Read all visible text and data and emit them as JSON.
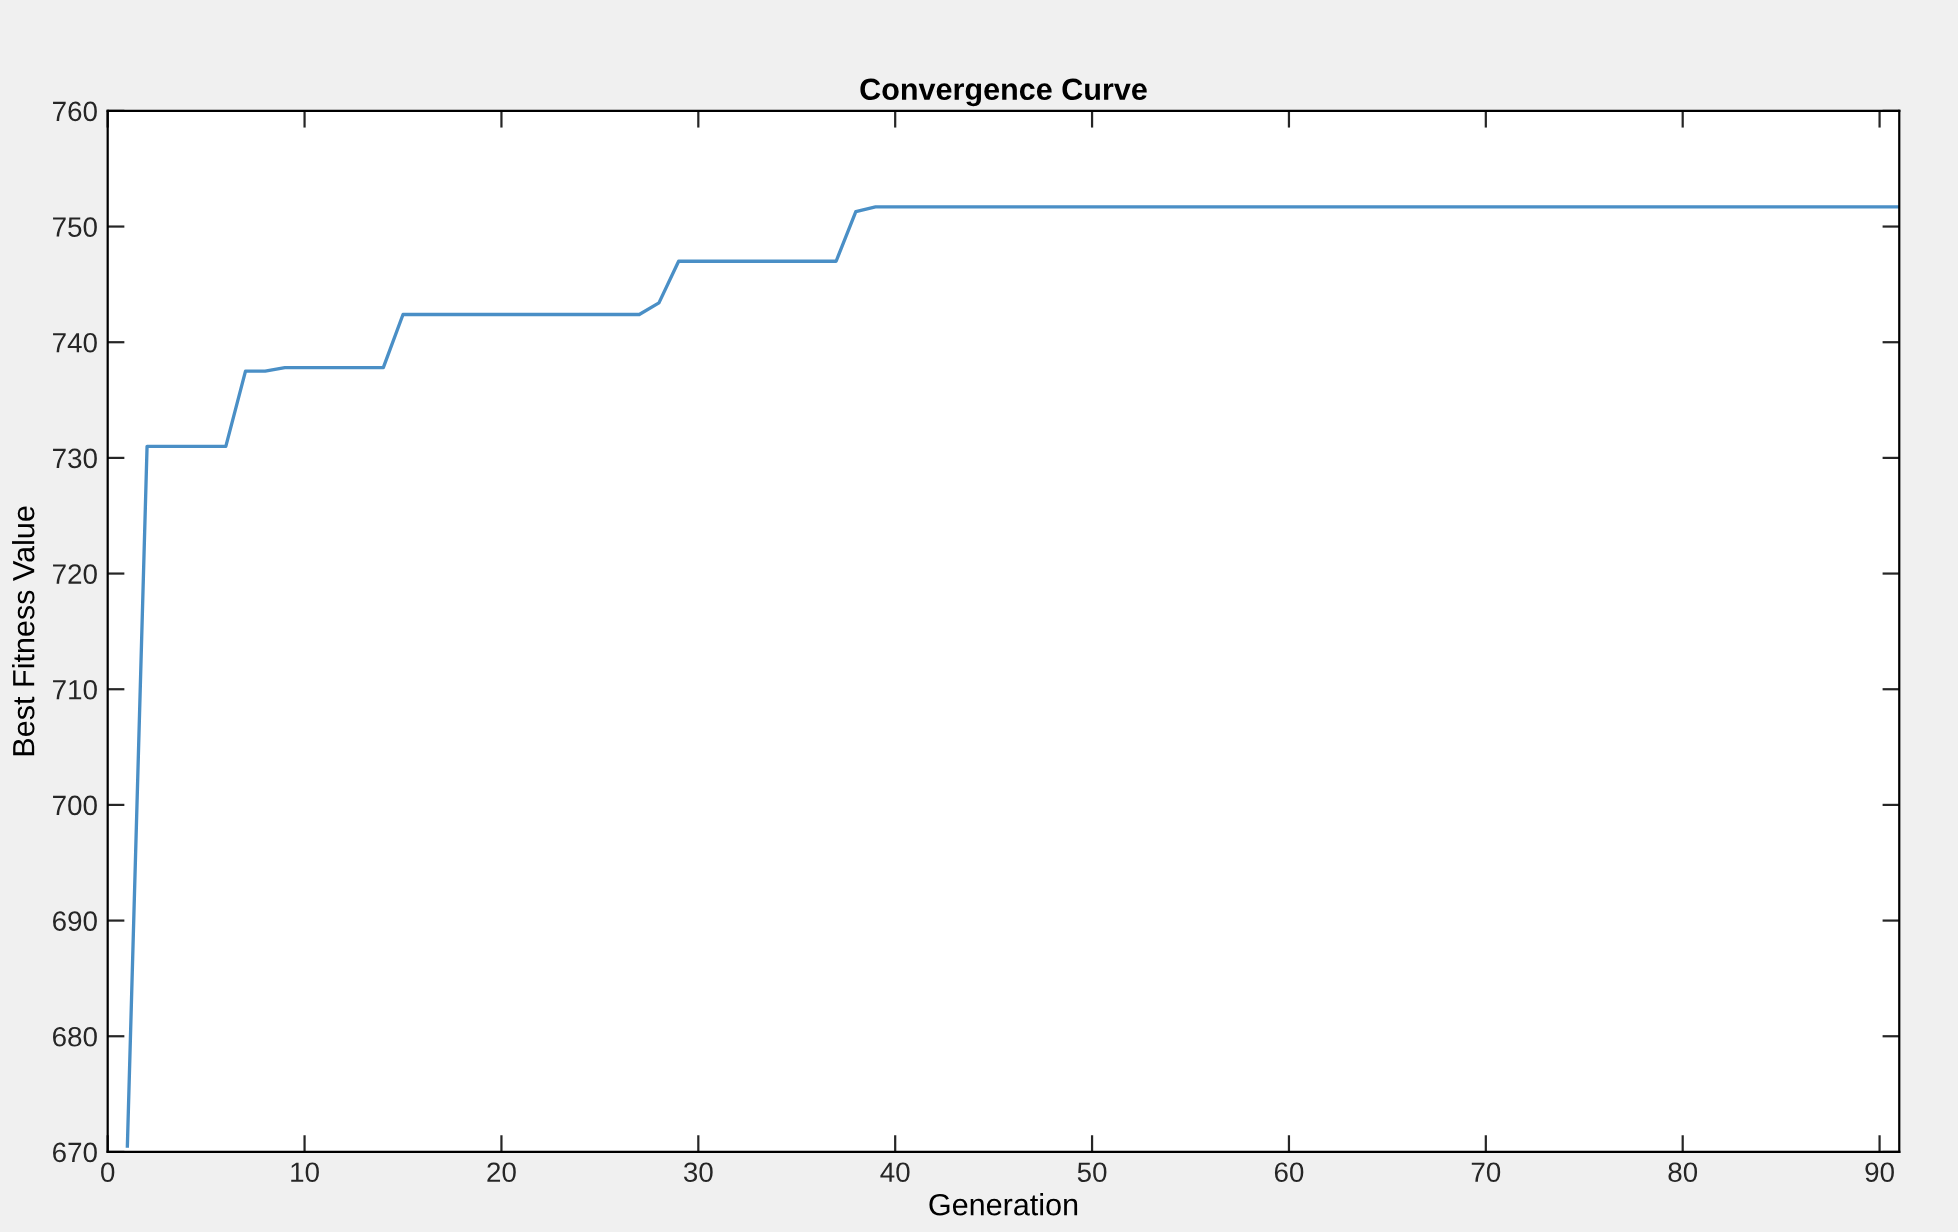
{
  "chart_data": {
    "type": "line",
    "title": "Convergence Curve",
    "xlabel": "Generation",
    "ylabel": "Best Fitness Value",
    "x": [
      1,
      2,
      6,
      7,
      8,
      9,
      14,
      15,
      27,
      28,
      29,
      37,
      38,
      39,
      91
    ],
    "series": [
      {
        "color": "#4a8fc6",
        "values": [
          670.5,
          731,
          731,
          737.5,
          737.5,
          737.8,
          737.8,
          742.4,
          742.4,
          743.4,
          747,
          747,
          751.3,
          751.7,
          751.7
        ]
      }
    ],
    "xlim": [
      0,
      91
    ],
    "xticks": [
      0,
      10,
      20,
      30,
      40,
      50,
      60,
      70,
      80,
      90
    ],
    "ylim": [
      670,
      760
    ],
    "yticks": [
      670,
      680,
      690,
      700,
      710,
      720,
      730,
      740,
      750,
      760
    ],
    "grid": false,
    "legend": false,
    "marker": "none",
    "line_style": "solid"
  }
}
